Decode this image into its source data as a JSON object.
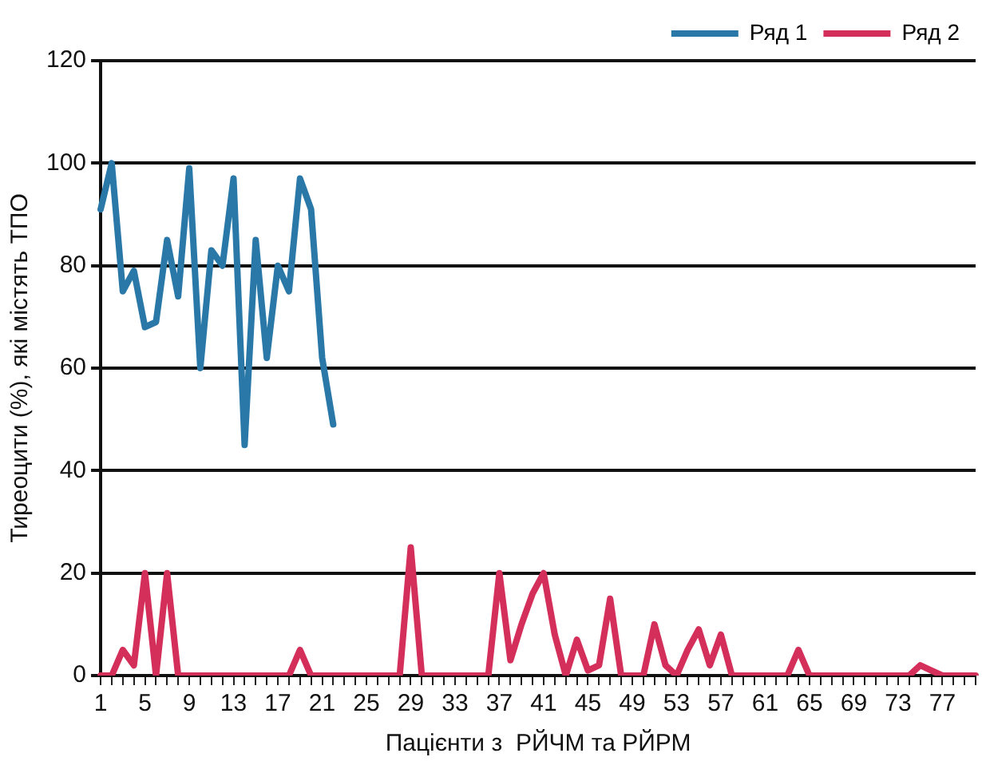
{
  "chart_data": {
    "type": "line",
    "xlabel": "Пацієнти з  РЙЧМ та РЙРМ",
    "ylabel": "Тиреоцити (%), які містять ТПО",
    "categories": [
      "1",
      null,
      null,
      null,
      "5",
      null,
      null,
      null,
      "9",
      null,
      null,
      null,
      "13",
      null,
      null,
      null,
      "17",
      null,
      null,
      null,
      "21",
      null,
      null,
      null,
      "25",
      null,
      null,
      null,
      "29",
      null,
      null,
      null,
      "33",
      null,
      null,
      null,
      "37",
      null,
      null,
      null,
      "41",
      null,
      null,
      null,
      "45",
      null,
      null,
      null,
      "49",
      null,
      null,
      null,
      "53",
      null,
      null,
      null,
      "57",
      null,
      null,
      null,
      "61",
      null,
      null,
      null,
      "65",
      null,
      null,
      null,
      "69",
      null,
      null,
      null,
      "73",
      null,
      null,
      null,
      "77",
      null,
      null,
      null
    ],
    "series": [
      {
        "name": "Ряд 1",
        "color": "#2a78a8",
        "values": [
          91,
          100,
          75,
          79,
          68,
          69,
          85,
          74,
          99,
          60,
          83,
          80,
          97,
          45,
          85,
          62,
          80,
          75,
          97,
          91,
          62,
          49,
          null,
          null,
          null,
          null,
          null,
          null,
          null,
          null,
          null,
          null,
          null,
          null,
          null,
          null,
          null,
          null,
          null,
          null,
          null,
          null,
          null,
          null,
          null,
          null,
          null,
          null,
          null,
          null,
          null,
          null,
          null,
          null,
          null,
          null,
          null,
          null,
          null,
          null,
          null,
          null,
          null,
          null,
          null,
          null,
          null,
          null,
          null,
          null,
          null,
          null,
          null,
          null,
          null,
          null,
          null,
          null,
          null,
          null
        ]
      },
      {
        "name": "Ряд 2",
        "color": "#d42f5a",
        "values": [
          0,
          0,
          5,
          2,
          20,
          0,
          20,
          0,
          0,
          0,
          0,
          0,
          0,
          0,
          0,
          0,
          0,
          0,
          5,
          0,
          0,
          0,
          0,
          0,
          0,
          0,
          0,
          0,
          25,
          0,
          0,
          0,
          0,
          0,
          0,
          0,
          20,
          3,
          10,
          16,
          20,
          8,
          0,
          7,
          1,
          2,
          15,
          0,
          0,
          0,
          10,
          2,
          0,
          5,
          9,
          2,
          8,
          0,
          0,
          0,
          0,
          0,
          0,
          5,
          0,
          0,
          0,
          0,
          0,
          0,
          0,
          0,
          0,
          0,
          2,
          1,
          0,
          0,
          0,
          0
        ]
      }
    ],
    "ylim": [
      0,
      120
    ],
    "yticks": [
      0,
      20,
      40,
      60,
      80,
      100,
      120
    ],
    "grid": "y",
    "legend": "top right",
    "marker": "none",
    "line_style": "solid"
  }
}
